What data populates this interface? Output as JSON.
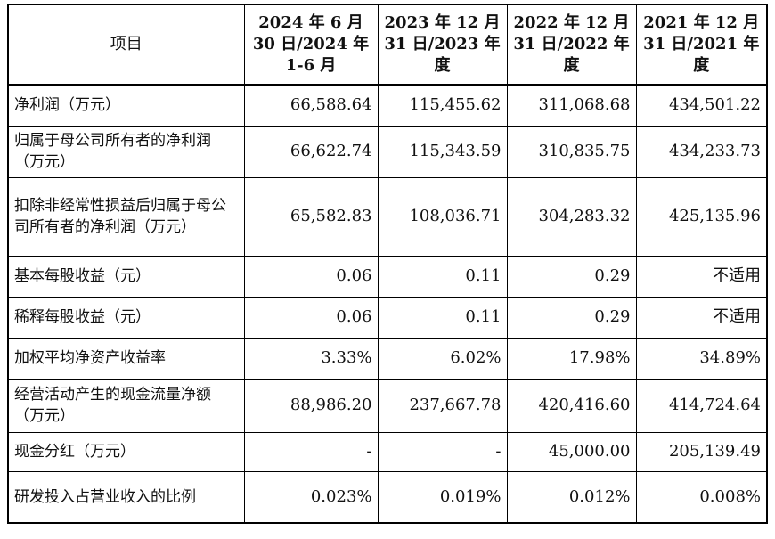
{
  "table": {
    "headers": [
      "项目",
      "2024 年 6 月 30 日/2024 年 1-6 月",
      "2023 年 12 月 31 日/2023 年度",
      "2022 年 12 月 31 日/2022 年度",
      "2021 年 12 月 31 日/2021 年度"
    ],
    "rows": [
      {
        "label": "净利润（万元）",
        "values": [
          "66,588.64",
          "115,455.62",
          "311,068.68",
          "434,501.22"
        ]
      },
      {
        "label": "归属于母公司所有者的净利润（万元）",
        "values": [
          "66,622.74",
          "115,343.59",
          "310,835.75",
          "434,233.73"
        ]
      },
      {
        "label": "扣除非经常性损益后归属于母公司所有者的净利润（万元）",
        "values": [
          "65,582.83",
          "108,036.71",
          "304,283.32",
          "425,135.96"
        ]
      },
      {
        "label": "基本每股收益（元）",
        "values": [
          "0.06",
          "0.11",
          "0.29",
          "不适用"
        ]
      },
      {
        "label": "稀释每股收益（元）",
        "values": [
          "0.06",
          "0.11",
          "0.29",
          "不适用"
        ]
      },
      {
        "label": "加权平均净资产收益率",
        "values": [
          "3.33%",
          "6.02%",
          "17.98%",
          "34.89%"
        ]
      },
      {
        "label": "经营活动产生的现金流量净额（万元）",
        "values": [
          "88,986.20",
          "237,667.78",
          "420,416.60",
          "414,724.64"
        ]
      },
      {
        "label": "现金分红（万元）",
        "values": [
          "-",
          "-",
          "45,000.00",
          "205,139.49"
        ]
      },
      {
        "label": "研发投入占营业收入的比例",
        "values": [
          "0.023%",
          "0.019%",
          "0.012%",
          "0.008%"
        ]
      }
    ]
  }
}
